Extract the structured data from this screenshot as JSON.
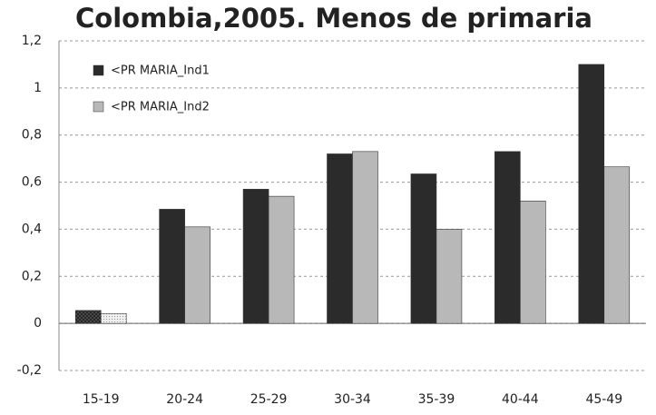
{
  "chart_data": {
    "type": "bar",
    "title": "Colombia,2005. Menos de primaria",
    "categories": [
      "15-19",
      "20-24",
      "25-29",
      "30-34",
      "35-39",
      "40-44",
      "45-49"
    ],
    "series": [
      {
        "name": "<PR MARIA_Ind1",
        "color": "#2b2b2b",
        "values": [
          0.055,
          0.485,
          0.57,
          0.72,
          0.635,
          0.73,
          1.1
        ]
      },
      {
        "name": "<PR MARIA_Ind2",
        "color": "#b8b8b8",
        "values": [
          0.042,
          0.41,
          0.54,
          0.73,
          0.4,
          0.52,
          0.665
        ]
      }
    ],
    "ylim": [
      -0.2,
      1.2
    ],
    "yticks": [
      {
        "value": -0.2,
        "label": "-0,2"
      },
      0,
      {
        "value": 0.2,
        "label": "0,2"
      },
      {
        "value": 0.4,
        "label": "0,4"
      },
      {
        "value": 0.6,
        "label": "0,6"
      },
      {
        "value": 0.8,
        "label": "0,8"
      },
      1,
      {
        "value": 1.2,
        "label": "1,2"
      }
    ],
    "grid": true,
    "legend": "upper left"
  }
}
